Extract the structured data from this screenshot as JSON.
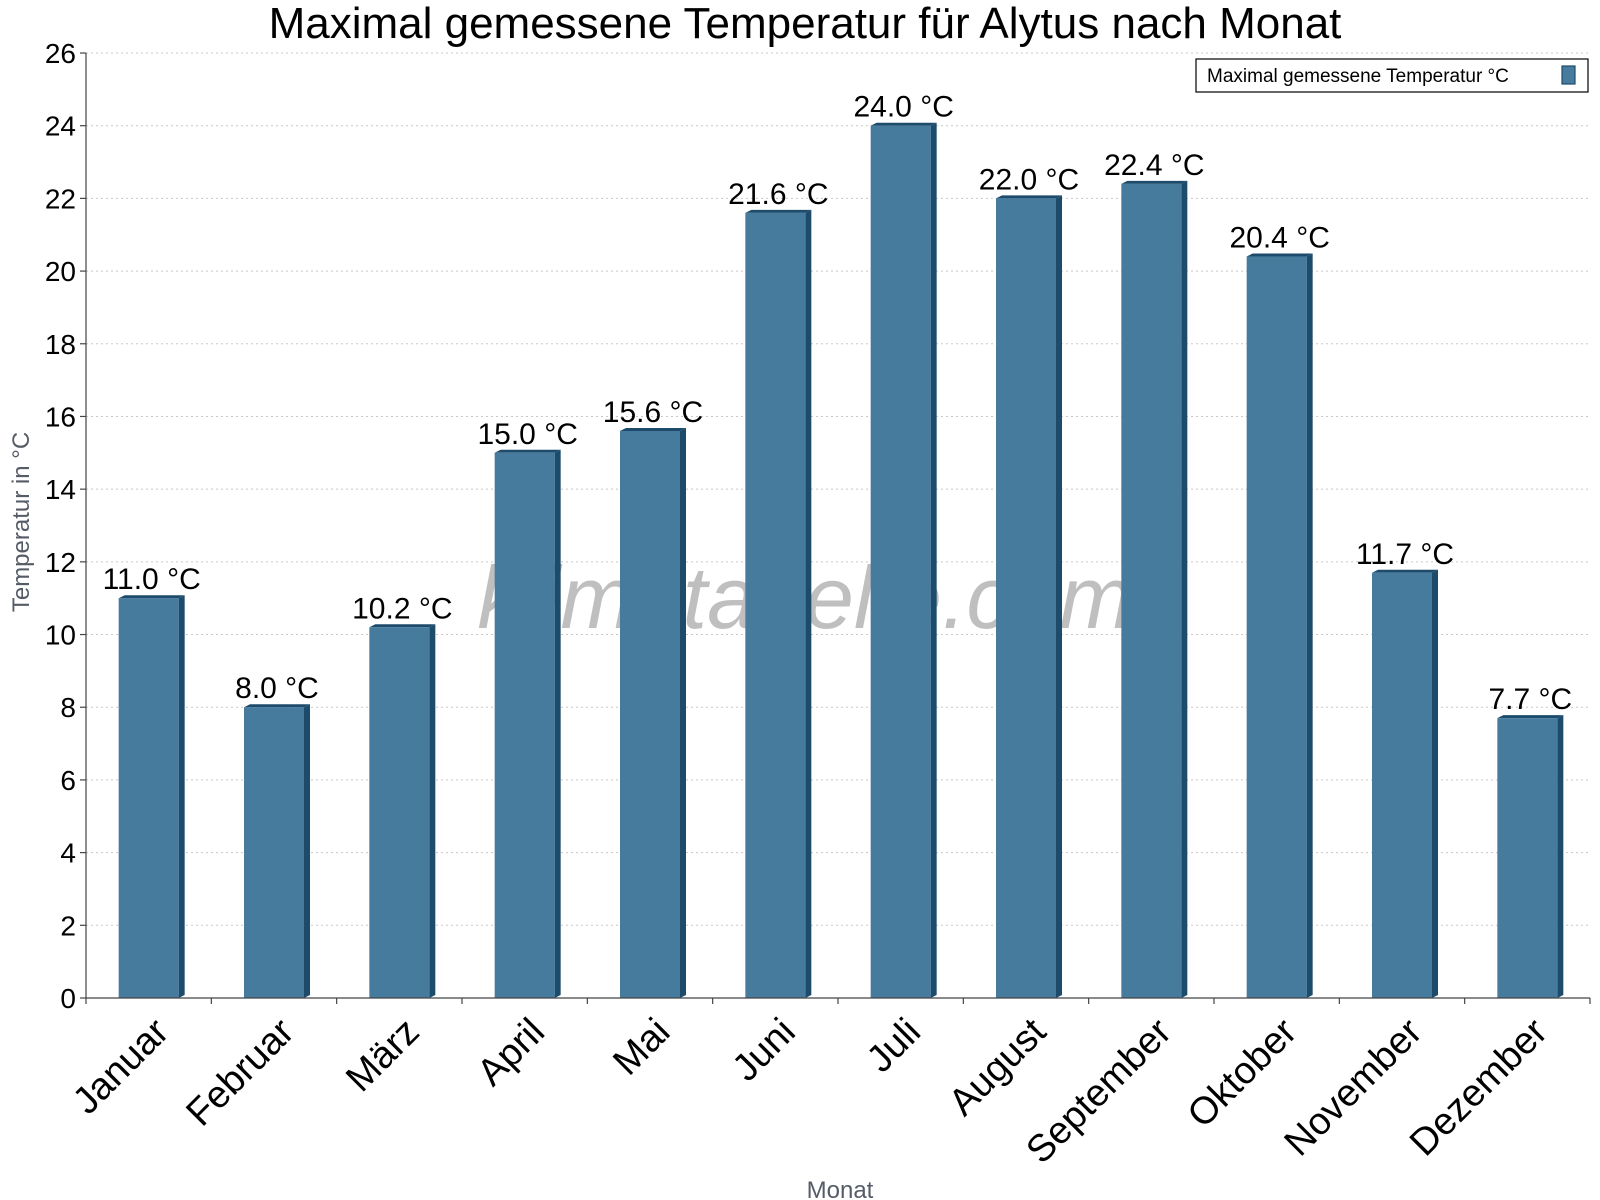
{
  "chart_data": {
    "type": "bar",
    "title": "Maximal gemessene Temperatur für Alytus nach Monat",
    "xlabel": "Monat",
    "ylabel": "Temperatur in °C",
    "categories": [
      "Januar",
      "Februar",
      "März",
      "April",
      "Mai",
      "Juni",
      "Juli",
      "August",
      "September",
      "Oktober",
      "November",
      "Dezember"
    ],
    "series": [
      {
        "name": "Maximal gemessene Temperatur °C",
        "values": [
          11.0,
          8.0,
          10.2,
          15.0,
          15.6,
          21.6,
          24.0,
          22.0,
          22.4,
          20.4,
          11.7,
          7.7
        ],
        "labels": [
          "11.0 °C",
          "8.0 °C",
          "10.2 °C",
          "15.0 °C",
          "15.6 °C",
          "21.6 °C",
          "24.0 °C",
          "22.0 °C",
          "22.4 °C",
          "20.4 °C",
          "11.7 °C",
          "7.7 °C"
        ],
        "color": "#467b9e"
      }
    ],
    "ylim": [
      0,
      26
    ],
    "yticks": [
      0,
      2,
      4,
      6,
      8,
      10,
      12,
      14,
      16,
      18,
      20,
      22,
      24,
      26
    ],
    "grid": true,
    "legend": "top-right",
    "watermark": "klimatabelle.com",
    "colors": {
      "bar": "#467b9e",
      "bar_edge": "#1d4b6b",
      "grid": "#c8c8c8"
    }
  }
}
